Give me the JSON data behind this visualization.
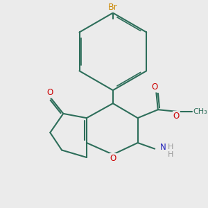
{
  "bg": "#ebebeb",
  "bc": "#2d6e5a",
  "oc": "#cc0000",
  "nc": "#2222bb",
  "brc": "#cc8800",
  "hc": "#999999",
  "lw": 1.5,
  "fs": 8.5,
  "dpi": 100,
  "figsize": [
    3.0,
    3.0
  ],
  "xlim": [
    1.0,
    8.5
  ],
  "ylim": [
    1.0,
    9.0
  ]
}
